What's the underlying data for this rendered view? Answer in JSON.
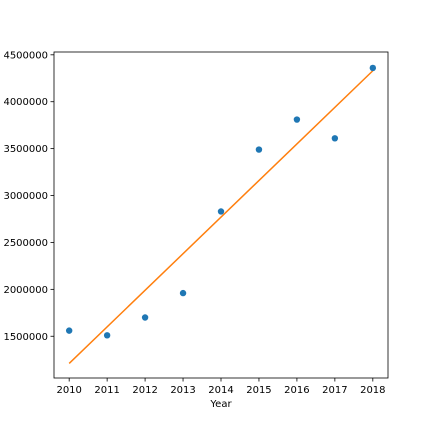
{
  "chart_data": {
    "type": "scatter",
    "title": "",
    "xlabel": "Year",
    "ylabel": "",
    "xlim": [
      2009.6,
      2018.4
    ],
    "ylim": [
      1055000,
      4530000
    ],
    "x_ticks": [
      2010,
      2011,
      2012,
      2013,
      2014,
      2015,
      2016,
      2017,
      2018
    ],
    "y_ticks": [
      1500000,
      2000000,
      2500000,
      3000000,
      3500000,
      4000000,
      4500000
    ],
    "x_tick_labels": [
      "2010",
      "2011",
      "2012",
      "2013",
      "2014",
      "2015",
      "2016",
      "2017",
      "2018"
    ],
    "y_tick_labels": [
      "1500000",
      "2000000",
      "2500000",
      "3000000",
      "3500000",
      "4000000",
      "4500000"
    ],
    "grid": false,
    "legend": "none",
    "series": [
      {
        "kind": "scatter",
        "color": "#1f77b4",
        "x": [
          2010,
          2011,
          2012,
          2013,
          2014,
          2015,
          2016,
          2017,
          2018
        ],
        "y": [
          1560000,
          1510000,
          1700000,
          1960000,
          2830000,
          3490000,
          3810000,
          3610000,
          4360000
        ]
      },
      {
        "kind": "line",
        "color": "#ff7f0e",
        "x": [
          2010,
          2018
        ],
        "y": [
          1210000,
          4330000
        ]
      }
    ]
  }
}
